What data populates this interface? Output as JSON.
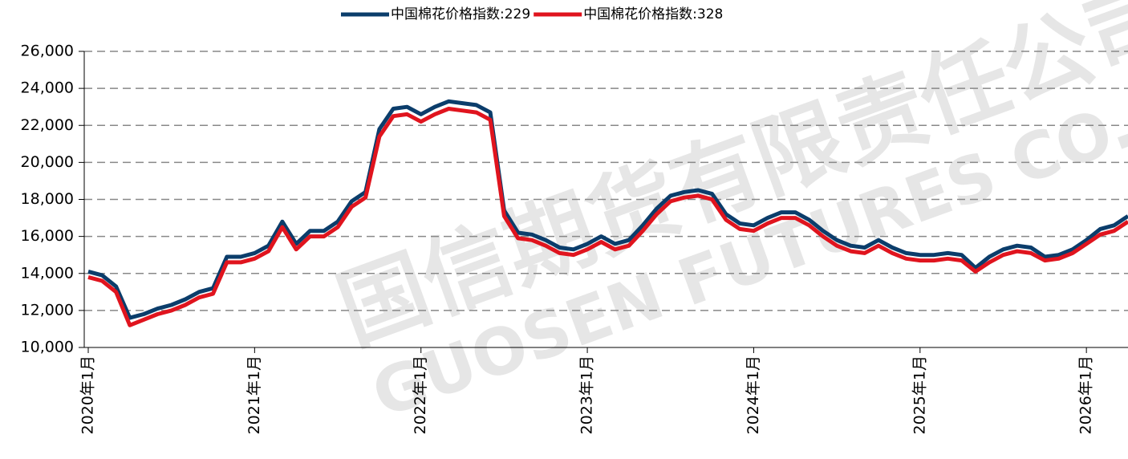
{
  "chart_data": {
    "type": "line",
    "watermark": [
      "国信期货有限责任公司",
      "GUOSEN FUTURES CO.,LTD"
    ],
    "x": [
      "2020-01",
      "2020-02",
      "2020-03",
      "2020-04",
      "2020-05",
      "2020-06",
      "2020-07",
      "2020-08",
      "2020-09",
      "2020-10",
      "2020-11",
      "2020-12",
      "2021-01",
      "2021-02",
      "2021-03",
      "2021-04",
      "2021-05",
      "2021-06",
      "2021-07",
      "2021-08",
      "2021-09",
      "2021-10",
      "2021-11",
      "2021-12",
      "2022-01",
      "2022-02",
      "2022-03",
      "2022-04",
      "2022-05",
      "2022-06",
      "2022-07",
      "2022-08",
      "2022-09",
      "2022-10",
      "2022-11",
      "2022-12",
      "2023-01",
      "2023-02",
      "2023-03",
      "2023-04",
      "2023-05",
      "2023-06",
      "2023-07",
      "2023-08",
      "2023-09",
      "2023-10",
      "2023-11",
      "2023-12",
      "2024-01",
      "2024-02",
      "2024-03",
      "2024-04",
      "2024-05",
      "2024-06",
      "2024-07",
      "2024-08",
      "2024-09",
      "2024-10",
      "2024-11",
      "2024-12",
      "2025-01",
      "2025-02",
      "2025-03",
      "2025-04",
      "2025-05",
      "2025-06",
      "2025-07",
      "2025-08",
      "2025-09",
      "2025-10",
      "2025-11",
      "2025-12",
      "2026-01",
      "2026-02",
      "2026-03",
      "2026-04"
    ],
    "series": [
      {
        "name": "中国棉花价格指数:229",
        "color": "#0b3d6b",
        "values": [
          14100,
          13900,
          13300,
          11600,
          11800,
          12100,
          12300,
          12600,
          13000,
          13200,
          14900,
          14900,
          15100,
          15500,
          16800,
          15600,
          16300,
          16300,
          16800,
          17900,
          18400,
          21800,
          22900,
          23000,
          22600,
          23000,
          23300,
          23200,
          23100,
          22700,
          17400,
          16200,
          16100,
          15800,
          15400,
          15300,
          15600,
          16000,
          15600,
          15800,
          16600,
          17500,
          18200,
          18400,
          18500,
          18300,
          17200,
          16700,
          16600,
          17000,
          17300,
          17300,
          16900,
          16300,
          15800,
          15500,
          15400,
          15800,
          15400,
          15100,
          15000,
          15000,
          15100,
          15000,
          14300,
          14900,
          15300,
          15500,
          15400,
          14900,
          15000,
          15300,
          15800,
          16400,
          16600,
          17100
        ]
      },
      {
        "name": "中国棉花价格指数:328",
        "color": "#e0141e",
        "values": [
          13800,
          13600,
          13000,
          11200,
          11500,
          11800,
          12000,
          12300,
          12700,
          12900,
          14600,
          14600,
          14800,
          15200,
          16500,
          15300,
          16000,
          16000,
          16500,
          17600,
          18100,
          21400,
          22500,
          22600,
          22200,
          22600,
          22900,
          22800,
          22700,
          22300,
          17100,
          15900,
          15800,
          15500,
          15100,
          15000,
          15300,
          15700,
          15300,
          15500,
          16300,
          17200,
          17900,
          18100,
          18200,
          18000,
          16900,
          16400,
          16300,
          16700,
          17000,
          17000,
          16600,
          16000,
          15500,
          15200,
          15100,
          15500,
          15100,
          14800,
          14700,
          14700,
          14800,
          14700,
          14100,
          14600,
          15000,
          15200,
          15100,
          14700,
          14800,
          15100,
          15600,
          16100,
          16300,
          16800
        ]
      }
    ],
    "xlim": [
      "2020-01",
      "2026-04"
    ],
    "xticks": [
      {
        "value": "2020-01",
        "label": "2020年1月"
      },
      {
        "value": "2021-01",
        "label": "2021年1月"
      },
      {
        "value": "2022-01",
        "label": "2022年1月"
      },
      {
        "value": "2023-01",
        "label": "2023年1月"
      },
      {
        "value": "2024-01",
        "label": "2024年1月"
      },
      {
        "value": "2025-01",
        "label": "2025年1月"
      },
      {
        "value": "2026-01",
        "label": "2026年1月"
      }
    ],
    "ylim": [
      10000,
      26000
    ],
    "yticks": [
      {
        "value": 10000,
        "label": "10,000"
      },
      {
        "value": 12000,
        "label": "12,000"
      },
      {
        "value": 14000,
        "label": "14,000"
      },
      {
        "value": 16000,
        "label": "16,000"
      },
      {
        "value": 18000,
        "label": "18,000"
      },
      {
        "value": 20000,
        "label": "20,000"
      },
      {
        "value": 22000,
        "label": "22,000"
      },
      {
        "value": 24000,
        "label": "24,000"
      },
      {
        "value": 26000,
        "label": "26,000"
      }
    ],
    "grid": true,
    "legend": "top"
  }
}
